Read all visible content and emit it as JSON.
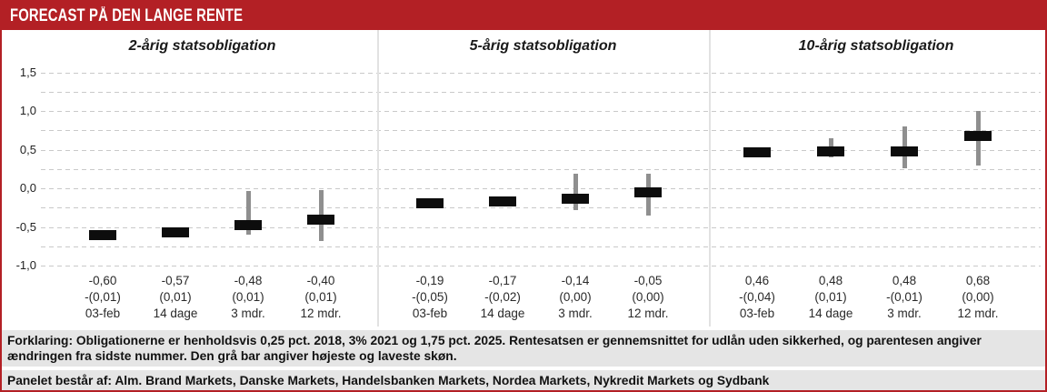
{
  "header": {
    "title": "FORECAST PÅ DEN LANGE RENTE"
  },
  "colors": {
    "accent_red": "#b32025",
    "bar_black": "#0d0d0d",
    "range_gray": "#8f8f8f",
    "footer_bg": "#e5e5e5",
    "grid_gray": "#c9c9c9"
  },
  "chart_data": {
    "type": "bar",
    "title": "FORECAST PÅ DEN LANGE RENTE",
    "ylim": [
      -1.0,
      1.5
    ],
    "grid_step": 0.25,
    "grid": "dashed",
    "legend_position": "none",
    "yticks": [
      {
        "value": 1.5,
        "label": "1,5"
      },
      {
        "value": 1.0,
        "label": "1,0"
      },
      {
        "value": 0.5,
        "label": "0,5"
      },
      {
        "value": 0.0,
        "label": "0,0"
      },
      {
        "value": -0.5,
        "label": "-0,5"
      },
      {
        "value": -1.0,
        "label": "-1,0"
      }
    ],
    "panels": [
      {
        "title": "2-årig statsobligation",
        "points": [
          {
            "value": -0.6,
            "value_label": "-0,60",
            "change_label": "-(0,01)",
            "period_label": "03-feb",
            "range_high": null,
            "range_low": null
          },
          {
            "value": -0.57,
            "value_label": "-0,57",
            "change_label": "(0,01)",
            "period_label": "14 dage",
            "range_high": null,
            "range_low": null
          },
          {
            "value": -0.48,
            "value_label": "-0,48",
            "change_label": "(0,01)",
            "period_label": "3 mdr.",
            "range_high": -0.03,
            "range_low": -0.6
          },
          {
            "value": -0.4,
            "value_label": "-0,40",
            "change_label": "(0,01)",
            "period_label": "12 mdr.",
            "range_high": -0.02,
            "range_low": -0.68
          }
        ]
      },
      {
        "title": "5-årig statsobligation",
        "points": [
          {
            "value": -0.19,
            "value_label": "-0,19",
            "change_label": "-(0,05)",
            "period_label": "03-feb",
            "range_high": null,
            "range_low": null
          },
          {
            "value": -0.17,
            "value_label": "-0,17",
            "change_label": "-(0,02)",
            "period_label": "14 dage",
            "range_high": -0.1,
            "range_low": -0.22
          },
          {
            "value": -0.14,
            "value_label": "-0,14",
            "change_label": "(0,00)",
            "period_label": "3 mdr.",
            "range_high": 0.19,
            "range_low": -0.28
          },
          {
            "value": -0.05,
            "value_label": "-0,05",
            "change_label": "(0,00)",
            "period_label": "12 mdr.",
            "range_high": 0.19,
            "range_low": -0.35
          }
        ]
      },
      {
        "title": "10-årig statsobligation",
        "points": [
          {
            "value": 0.46,
            "value_label": "0,46",
            "change_label": "-(0,04)",
            "period_label": "03-feb",
            "range_high": null,
            "range_low": null
          },
          {
            "value": 0.48,
            "value_label": "0,48",
            "change_label": "(0,01)",
            "period_label": "14 dage",
            "range_high": 0.65,
            "range_low": 0.4
          },
          {
            "value": 0.48,
            "value_label": "0,48",
            "change_label": "-(0,01)",
            "period_label": "3 mdr.",
            "range_high": 0.8,
            "range_low": 0.26
          },
          {
            "value": 0.68,
            "value_label": "0,68",
            "change_label": "(0,00)",
            "period_label": "12 mdr.",
            "range_high": 1.0,
            "range_low": 0.3
          }
        ]
      }
    ]
  },
  "footer": {
    "explanation": "Forklaring: Obligationerne er henholdsvis 0,25 pct. 2018, 3% 2021 og 1,75 pct. 2025. Rentesatsen er gennemsnittet for udlån uden sikkerhed, og parentesen angiver ændringen fra sidste nummer. Den grå bar angiver højeste og laveste skøn.",
    "panel_members": "Panelet består af: Alm. Brand Markets, Danske Markets, Handelsbanken Markets, Nordea Markets, Nykredit Markets og Sydbank"
  }
}
